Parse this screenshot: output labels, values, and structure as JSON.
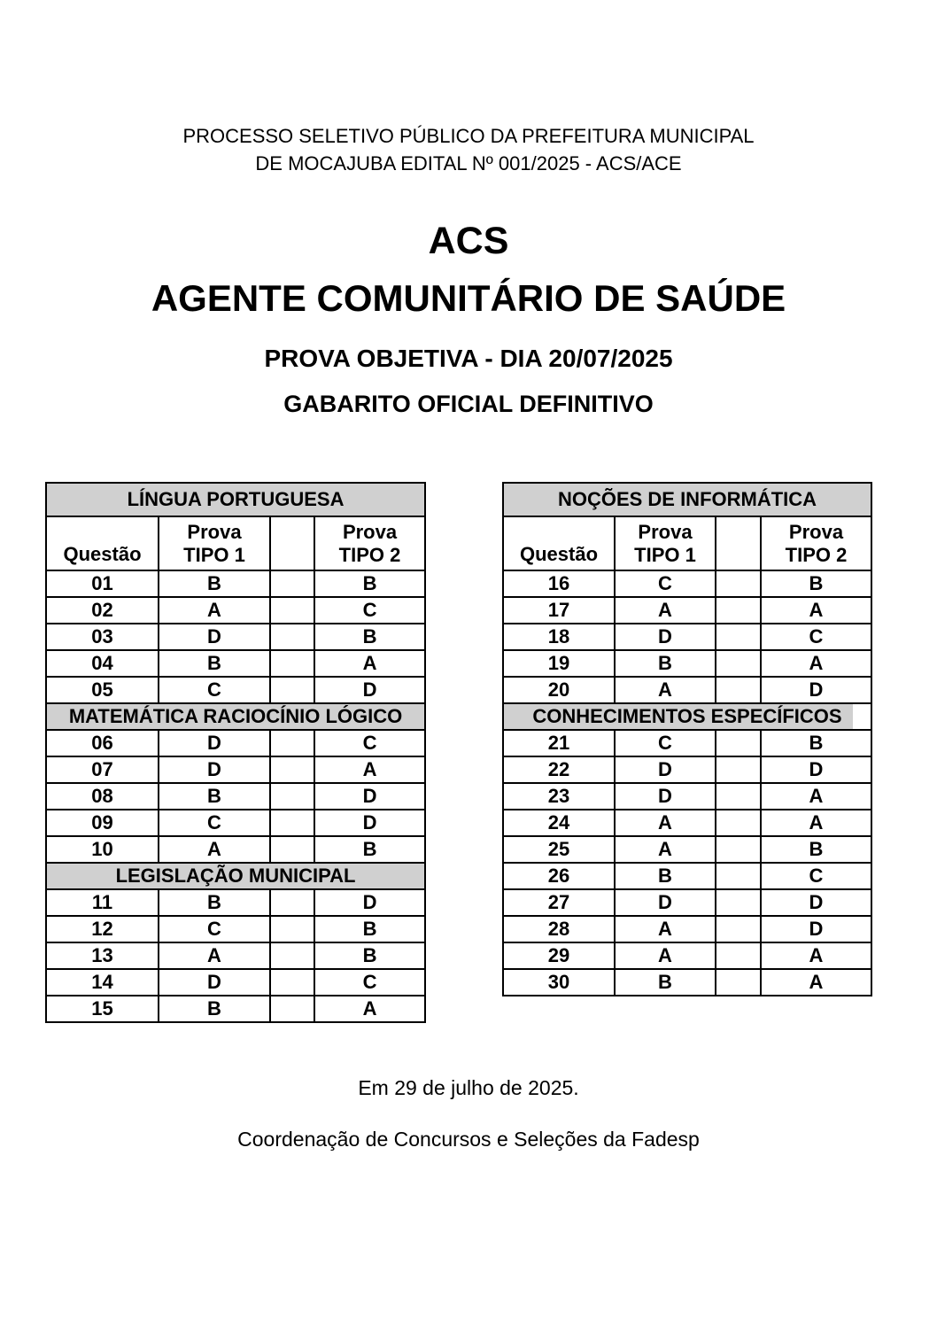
{
  "header": {
    "line1": "PROCESSO SELETIVO PÚBLICO DA PREFEITURA MUNICIPAL",
    "line2": "DE MOCAJUBA EDITAL Nº 001/2025 - ACS/ACE"
  },
  "titles": {
    "exam_code": "ACS",
    "exam_role": "AGENTE COMUNITÁRIO DE SAÚDE",
    "exam_date_line": "PROVA OBJETIVA - DIA 20/07/2025",
    "answer_key_line": "GABARITO OFICIAL DEFINITIVO"
  },
  "colors": {
    "section_header_bg": "#d0d0d0",
    "table_border": "#000000",
    "text": "#000000",
    "page_bg": "#ffffff"
  },
  "col_labels": {
    "questao": "Questão",
    "prova": "Prova",
    "tipo1": "TIPO 1",
    "tipo2": "TIPO 2"
  },
  "answer_tables": [
    {
      "title": "LÍNGUA PORTUGUESA",
      "rows": [
        {
          "q": "01",
          "t1": "B",
          "t2": "B"
        },
        {
          "q": "02",
          "t1": "A",
          "t2": "C"
        },
        {
          "q": "03",
          "t1": "D",
          "t2": "B"
        },
        {
          "q": "04",
          "t1": "B",
          "t2": "A"
        },
        {
          "q": "05",
          "t1": "C",
          "t2": "D"
        },
        {
          "section": "MATEMÁTICA RACIOCÍNIO LÓGICO"
        },
        {
          "q": "06",
          "t1": "D",
          "t2": "C"
        },
        {
          "q": "07",
          "t1": "D",
          "t2": "A"
        },
        {
          "q": "08",
          "t1": "B",
          "t2": "D"
        },
        {
          "q": "09",
          "t1": "C",
          "t2": "D"
        },
        {
          "q": "10",
          "t1": "A",
          "t2": "B"
        },
        {
          "section": "LEGISLAÇÃO MUNICIPAL"
        },
        {
          "q": "11",
          "t1": "B",
          "t2": "D"
        },
        {
          "q": "12",
          "t1": "C",
          "t2": "B"
        },
        {
          "q": "13",
          "t1": "A",
          "t2": "B"
        },
        {
          "q": "14",
          "t1": "D",
          "t2": "C"
        },
        {
          "q": "15",
          "t1": "B",
          "t2": "A"
        }
      ]
    },
    {
      "title": "NOÇÕES DE INFORMÁTICA",
      "rows": [
        {
          "q": "16",
          "t1": "C",
          "t2": "B"
        },
        {
          "q": "17",
          "t1": "A",
          "t2": "A"
        },
        {
          "q": "18",
          "t1": "D",
          "t2": "C"
        },
        {
          "q": "19",
          "t1": "B",
          "t2": "A"
        },
        {
          "q": "20",
          "t1": "A",
          "t2": "D"
        },
        {
          "section": "CONHECIMENTOS ESPECÍFICOS",
          "partial": true
        },
        {
          "q": "21",
          "t1": "C",
          "t2": "B"
        },
        {
          "q": "22",
          "t1": "D",
          "t2": "D"
        },
        {
          "q": "23",
          "t1": "D",
          "t2": "A"
        },
        {
          "q": "24",
          "t1": "A",
          "t2": "A"
        },
        {
          "q": "25",
          "t1": "A",
          "t2": "B"
        },
        {
          "q": "26",
          "t1": "B",
          "t2": "C"
        },
        {
          "q": "27",
          "t1": "D",
          "t2": "D"
        },
        {
          "q": "28",
          "t1": "A",
          "t2": "D"
        },
        {
          "q": "29",
          "t1": "A",
          "t2": "A"
        },
        {
          "q": "30",
          "t1": "B",
          "t2": "A"
        }
      ]
    }
  ],
  "footer": {
    "date_line": "Em 29 de julho de 2025.",
    "organization_line": "Coordenação de Concursos e Seleções da Fadesp"
  }
}
